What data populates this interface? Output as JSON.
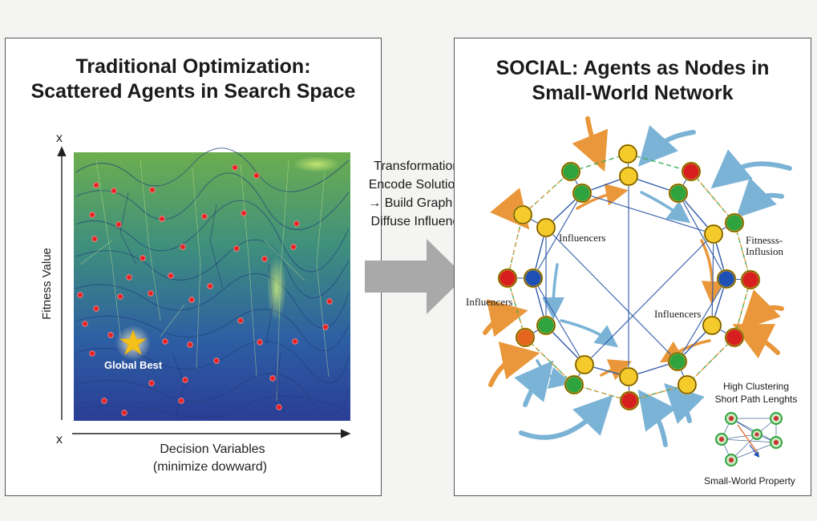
{
  "left": {
    "title_line1": "Traditional Optimization:",
    "title_line2": "Scattered Agents in Search Space",
    "y_axis_label": "Fitness Value",
    "y_axis_mark": "x",
    "x_axis_mark": "x",
    "x_label_line1": "Decision Variables",
    "x_label_line2": "(minimize dowward)",
    "global_best_label": "Global Best"
  },
  "transformation": {
    "line1": "Transformation:",
    "line2": "Encode Solutions",
    "line3": "→ Build Graph →",
    "line4": "Diffuse Influence"
  },
  "right": {
    "title_line1": "SOCIAL: Agents as Nodes in",
    "title_line2": "Small-World Network",
    "influencers_top_left": "Influencers",
    "influencers_left": "Influencers",
    "influencers_mid": "Influencers",
    "fitness_label_line1": "Fitnesss-",
    "fitness_label_line2": "Influsion",
    "clustering_line1": "High Clustering",
    "clustering_line2": "Short Path Lenghts",
    "small_world_label": "Small-World Property"
  },
  "colors": {
    "terrain": "#2f6aa0",
    "agent": "#e52222",
    "star": "#f5c21b",
    "node_yellow": "#f4cb2a",
    "node_green": "#2fa33e",
    "node_red": "#d81f1f",
    "node_blue": "#1d4fb4",
    "node_orange": "#e5641f",
    "arrow_orange": "#e9973a",
    "arrow_blue": "#7bb3d6"
  }
}
